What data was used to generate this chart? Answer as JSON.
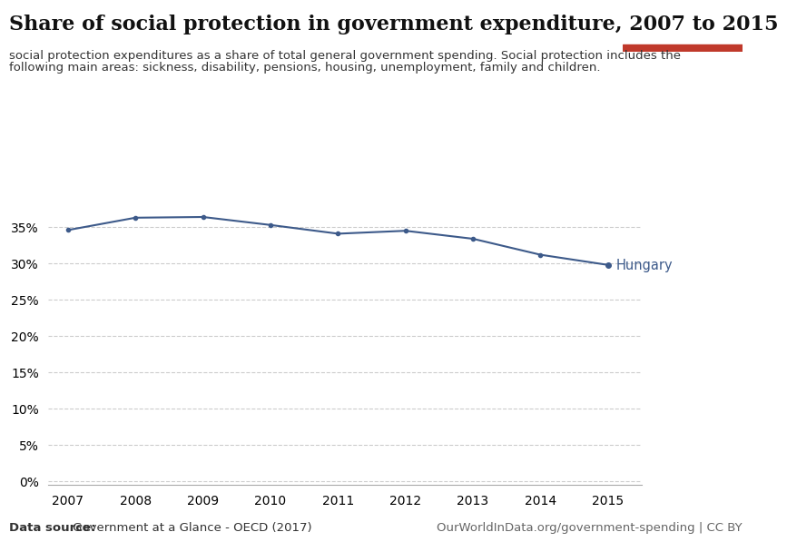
{
  "title": "Share of social protection in government expenditure, 2007 to 2015",
  "subtitle_line1": "social protection expenditures as a share of total general government spending. Social protection includes the",
  "subtitle_line2": "following main areas: sickness, disability, pensions, housing, unemployment, family and children.",
  "years": [
    2007,
    2008,
    2009,
    2010,
    2011,
    2012,
    2013,
    2014,
    2015
  ],
  "values": [
    0.346,
    0.363,
    0.364,
    0.353,
    0.341,
    0.345,
    0.334,
    0.312,
    0.298
  ],
  "line_color": "#3d5a8a",
  "label_text": "Hungary",
  "label_color": "#3d5a8a",
  "yticks": [
    0.0,
    0.05,
    0.1,
    0.15,
    0.2,
    0.25,
    0.3,
    0.35
  ],
  "ylim": [
    -0.005,
    0.4
  ],
  "xlim": [
    2006.7,
    2015.5
  ],
  "grid_color": "#cccccc",
  "datasource_bold": "Data source:",
  "datasource_rest": " Government at a Glance - OECD (2017)",
  "url": "OurWorldInData.org/government-spending | CC BY",
  "owid_box_color": "#1a2e4a",
  "owid_red": "#c0392b",
  "background_color": "#ffffff",
  "title_fontsize": 16,
  "subtitle_fontsize": 9.5,
  "tick_label_fontsize": 10,
  "label_fontsize": 10.5,
  "footer_fontsize": 9.5
}
